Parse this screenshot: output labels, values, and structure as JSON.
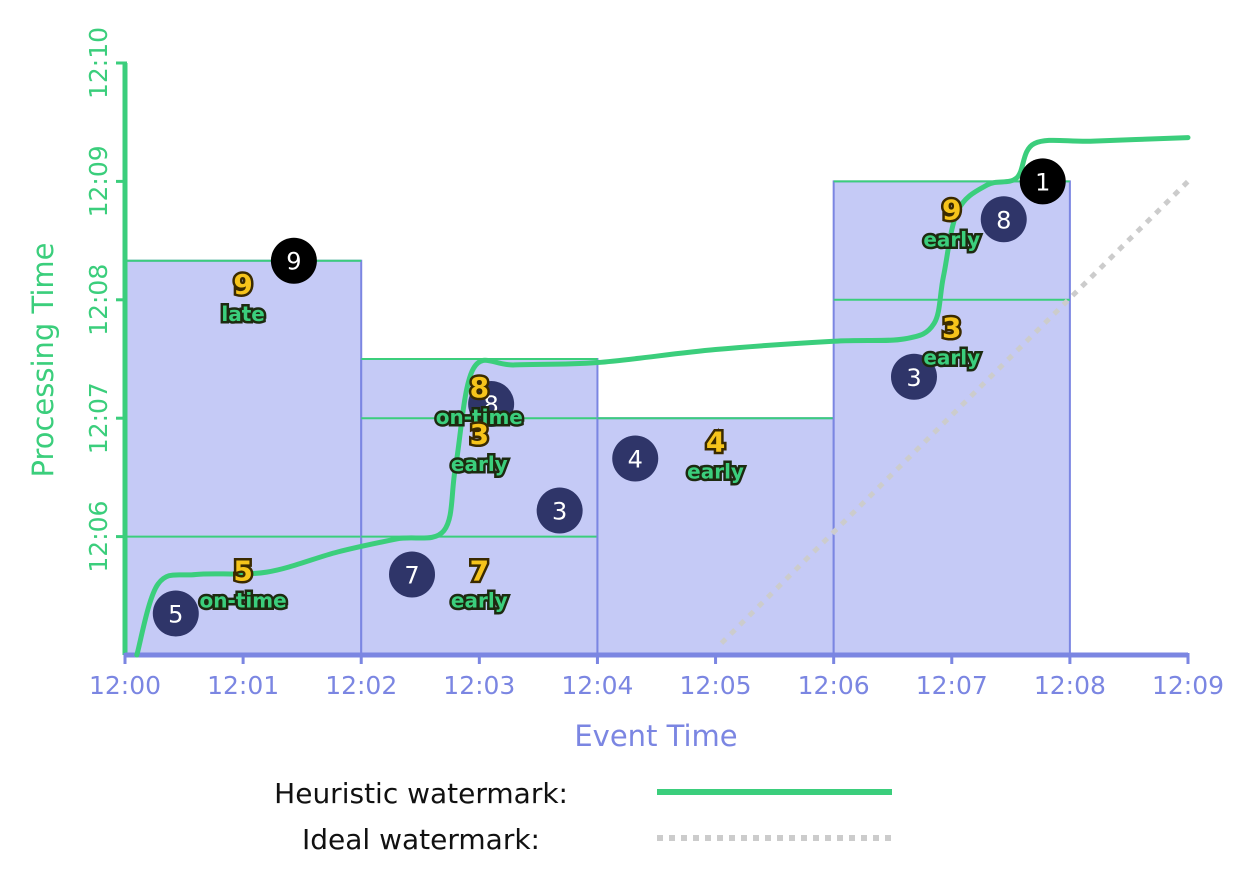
{
  "chart_data": {
    "type": "scatter",
    "title": "",
    "xlabel": "Event Time",
    "ylabel": "Processing Time",
    "x_ticks": [
      "12:00",
      "12:01",
      "12:02",
      "12:03",
      "12:04",
      "12:05",
      "12:06",
      "12:07",
      "12:08",
      "12:09"
    ],
    "y_ticks": [
      "12:06",
      "12:07",
      "12:08",
      "12:09",
      "12:10"
    ],
    "xlim": [
      0,
      9
    ],
    "ylim": [
      5,
      10
    ],
    "colors": {
      "event_axis": "#7b86e2",
      "processing_axis": "#3bce7c",
      "pane_fill": "#c5caf6",
      "pane_edge": "#7b86e2",
      "heuristic_watermark": "#3bce7c",
      "ideal_watermark": "#cccccc",
      "input_dot": "#2f3569",
      "late_dot": "#000000"
    },
    "windows": [
      {
        "x_start": 0,
        "x_end": 2,
        "y_top": 8.33,
        "y_lines": [
          6
        ]
      },
      {
        "x_start": 2,
        "x_end": 4,
        "y_top": 7.5,
        "y_lines": [
          7,
          6
        ]
      },
      {
        "x_start": 4,
        "x_end": 6,
        "y_top": 7,
        "y_lines": []
      },
      {
        "x_start": 6,
        "x_end": 8,
        "y_top": 9,
        "y_lines": [
          8
        ]
      }
    ],
    "inputs": [
      {
        "x": 0.43,
        "y": 5.35,
        "value": "5",
        "late": false
      },
      {
        "x": 1.43,
        "y": 8.33,
        "value": "9",
        "late": true
      },
      {
        "x": 2.43,
        "y": 5.68,
        "value": "7",
        "late": false
      },
      {
        "x": 3.1,
        "y": 7.12,
        "value": "8",
        "late": false
      },
      {
        "x": 3.68,
        "y": 6.22,
        "value": "3",
        "late": false
      },
      {
        "x": 4.32,
        "y": 6.66,
        "value": "4",
        "late": false
      },
      {
        "x": 6.68,
        "y": 7.35,
        "value": "3",
        "late": false
      },
      {
        "x": 7.44,
        "y": 8.68,
        "value": "8",
        "late": false
      },
      {
        "x": 7.77,
        "y": 9.0,
        "value": "1",
        "late": true
      }
    ],
    "pane_outputs": [
      {
        "x": 1.0,
        "y": 8.05,
        "value": "9",
        "timing": "late"
      },
      {
        "x": 1.0,
        "y": 5.63,
        "value": "5",
        "timing": "on-time"
      },
      {
        "x": 3.0,
        "y": 7.18,
        "value": "8",
        "timing": "on-time"
      },
      {
        "x": 3.0,
        "y": 6.78,
        "value": "3",
        "timing": "early"
      },
      {
        "x": 3.0,
        "y": 5.63,
        "value": "7",
        "timing": "early"
      },
      {
        "x": 5.0,
        "y": 6.72,
        "value": "4",
        "timing": "early"
      },
      {
        "x": 7.0,
        "y": 7.68,
        "value": "3",
        "timing": "early"
      },
      {
        "x": 7.0,
        "y": 8.68,
        "value": "9",
        "timing": "early"
      }
    ],
    "heuristic_watermark": {
      "name": "Heuristic watermark:",
      "points": [
        [
          0.1,
          5
        ],
        [
          0.28,
          5.6
        ],
        [
          0.6,
          5.68
        ],
        [
          1.2,
          5.7
        ],
        [
          1.8,
          5.87
        ],
        [
          2.3,
          5.98
        ],
        [
          2.7,
          6.05
        ],
        [
          2.8,
          6.6
        ],
        [
          2.95,
          7.42
        ],
        [
          3.3,
          7.45
        ],
        [
          4,
          7.47
        ],
        [
          5,
          7.58
        ],
        [
          6,
          7.65
        ],
        [
          6.6,
          7.67
        ],
        [
          6.85,
          7.8
        ],
        [
          6.93,
          8.2
        ],
        [
          7.05,
          8.75
        ],
        [
          7.3,
          8.97
        ],
        [
          7.55,
          9.03
        ],
        [
          7.7,
          9.32
        ],
        [
          8.2,
          9.34
        ],
        [
          9,
          9.37
        ]
      ]
    },
    "ideal_watermark": {
      "name": "Ideal watermark:",
      "points": [
        [
          5.05,
          5.1
        ],
        [
          9,
          9
        ]
      ]
    }
  }
}
